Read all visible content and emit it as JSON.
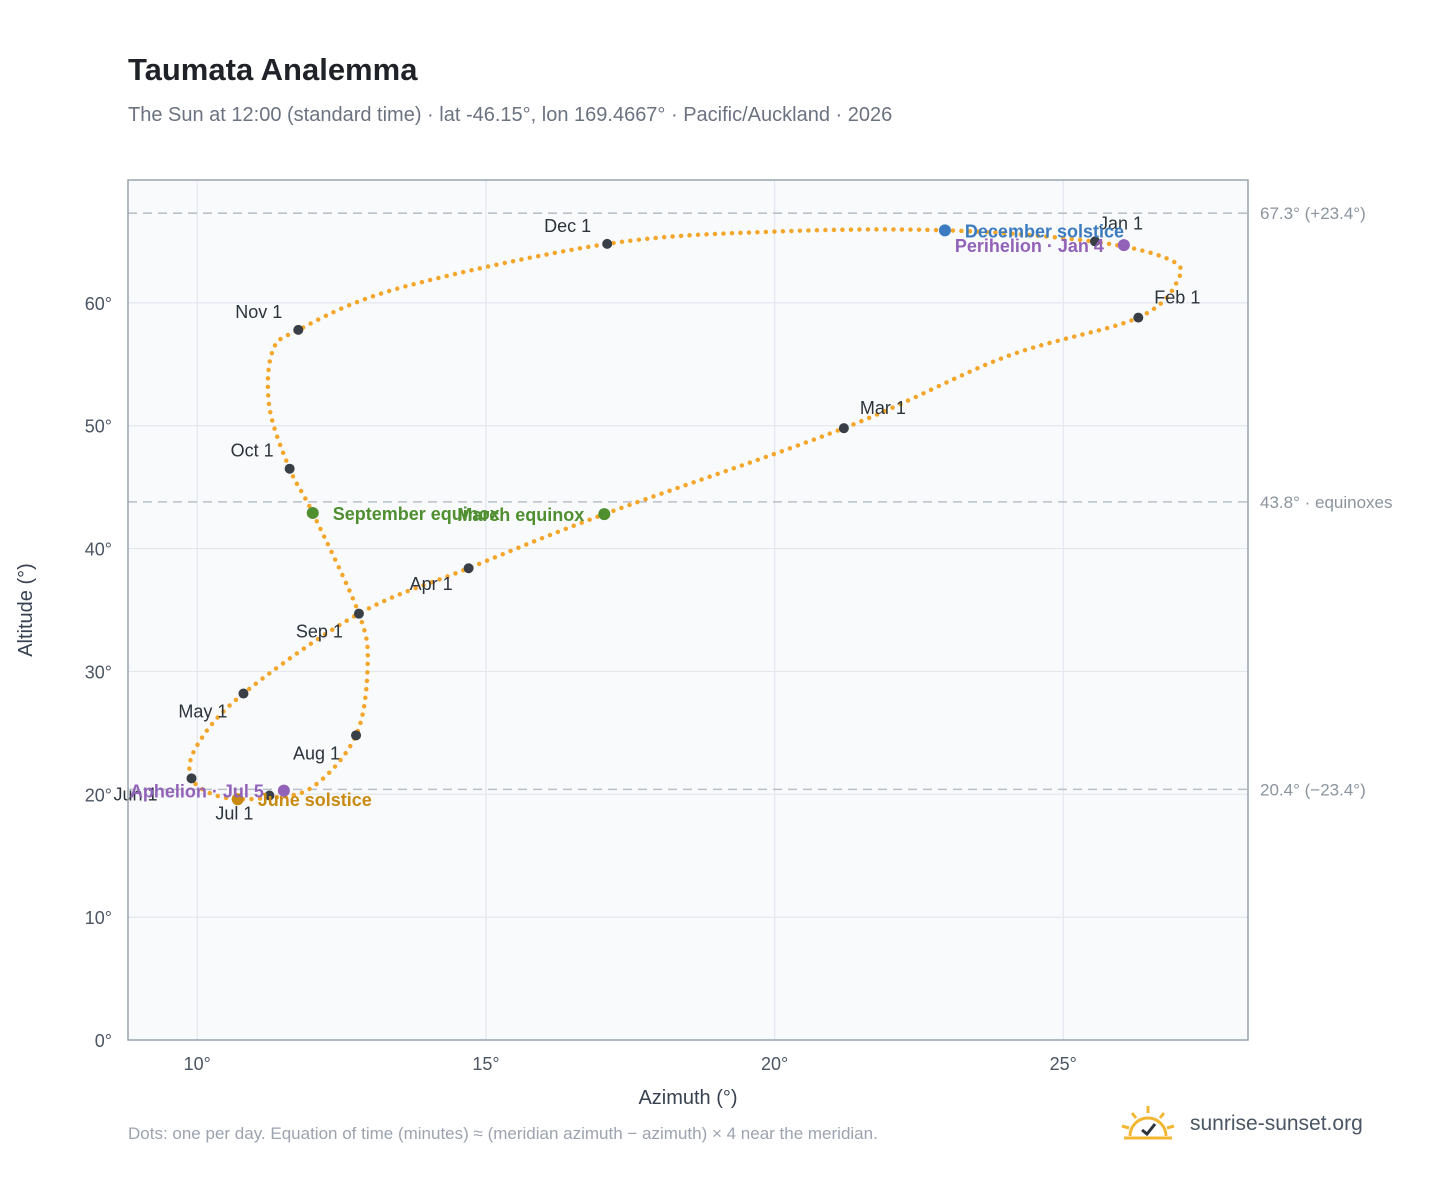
{
  "header": {
    "title": "Taumata Analemma",
    "subtitle": "The Sun at 12:00 (standard time) · lat -46.15°, lon 169.4667° · Pacific/Auckland · 2026"
  },
  "footer": {
    "note": "Dots: one per day. Equation of time (minutes) ≈ (meridian azimuth − azimuth) × 4 near the meridian.",
    "brand": "sunrise-sunset.org",
    "logo_icon": "sun-check-icon"
  },
  "chart_data": {
    "type": "scatter",
    "xlabel": "Azimuth (°)",
    "ylabel": "Altitude (°)",
    "xlim": [
      8.8,
      28.2
    ],
    "ylim": [
      0,
      70
    ],
    "x_ticks": [
      {
        "value": 10,
        "label": "10°"
      },
      {
        "value": 15,
        "label": "15°"
      },
      {
        "value": 20,
        "label": "20°"
      },
      {
        "value": 25,
        "label": "25°"
      }
    ],
    "y_ticks": [
      {
        "value": 0,
        "label": "0°"
      },
      {
        "value": 10,
        "label": "10°"
      },
      {
        "value": 20,
        "label": "20°"
      },
      {
        "value": 30,
        "label": "30°"
      },
      {
        "value": 40,
        "label": "40°"
      },
      {
        "value": 50,
        "label": "50°"
      },
      {
        "value": 60,
        "label": "60°"
      }
    ],
    "grid": true,
    "colors": {
      "curve": "#f4a62a",
      "month": "#3a3f47",
      "equinox": "#4f8f2f",
      "december_solstice": "#3b7bbf",
      "june_solstice": "#c98a12",
      "apsis": "#9162b8",
      "reference": "#b8c0c8",
      "plot_background": "#f8fafc"
    },
    "reference_lines": [
      {
        "y": 67.3,
        "label": "67.3° (+23.4°)"
      },
      {
        "y": 43.8,
        "label": "43.8° · equinoxes"
      },
      {
        "y": 20.4,
        "label": "20.4° (−23.4°)"
      }
    ],
    "curve_points": [
      [
        25.5,
        65.0
      ],
      [
        26.8,
        63.6
      ],
      [
        27.0,
        62.0
      ],
      [
        26.3,
        58.8
      ],
      [
        24.0,
        55.6
      ],
      [
        21.2,
        49.8
      ],
      [
        17.05,
        42.8
      ],
      [
        14.7,
        38.4
      ],
      [
        12.8,
        34.7
      ],
      [
        10.8,
        28.2
      ],
      [
        10.0,
        24.0
      ],
      [
        9.9,
        21.3
      ],
      [
        10.4,
        19.8
      ],
      [
        11.2,
        19.7
      ],
      [
        12.0,
        20.6
      ],
      [
        12.75,
        24.8
      ],
      [
        12.95,
        30.5
      ],
      [
        12.8,
        34.7
      ],
      [
        12.0,
        42.9
      ],
      [
        11.6,
        46.5
      ],
      [
        11.25,
        51.5
      ],
      [
        11.3,
        56.0
      ],
      [
        11.75,
        57.8
      ],
      [
        13.5,
        61.2
      ],
      [
        17.1,
        64.8
      ],
      [
        20.0,
        65.8
      ],
      [
        23.0,
        65.9
      ],
      [
        25.5,
        65.0
      ]
    ],
    "month_markers": [
      {
        "label": "Jan 1",
        "x": 25.55,
        "y": 65.0,
        "anchor": "start",
        "dx": 4,
        "dy": -12
      },
      {
        "label": "Feb 1",
        "x": 26.3,
        "y": 58.8,
        "anchor": "start",
        "dx": 16,
        "dy": -14
      },
      {
        "label": "Mar 1",
        "x": 21.2,
        "y": 49.8,
        "anchor": "start",
        "dx": 16,
        "dy": -14
      },
      {
        "label": "Apr 1",
        "x": 14.7,
        "y": 38.4,
        "anchor": "end",
        "dx": -16,
        "dy": 22
      },
      {
        "label": "May 1",
        "x": 10.8,
        "y": 28.2,
        "anchor": "end",
        "dx": -16,
        "dy": 24
      },
      {
        "label": "Jun 1",
        "x": 9.9,
        "y": 21.3,
        "anchor": "end",
        "dx": -34,
        "dy": 22
      },
      {
        "label": "Jul 1",
        "x": 11.25,
        "y": 19.9,
        "anchor": "end",
        "dx": -16,
        "dy": 24
      },
      {
        "label": "Aug 1",
        "x": 12.75,
        "y": 24.8,
        "anchor": "end",
        "dx": -16,
        "dy": 24
      },
      {
        "label": "Sep 1",
        "x": 12.8,
        "y": 34.7,
        "anchor": "end",
        "dx": -16,
        "dy": 24
      },
      {
        "label": "Oct 1",
        "x": 11.6,
        "y": 46.5,
        "anchor": "end",
        "dx": -16,
        "dy": -12
      },
      {
        "label": "Nov 1",
        "x": 11.75,
        "y": 57.8,
        "anchor": "end",
        "dx": -16,
        "dy": -12
      },
      {
        "label": "Dec 1",
        "x": 17.1,
        "y": 64.8,
        "anchor": "end",
        "dx": -16,
        "dy": -12
      }
    ],
    "events": [
      {
        "label": "December solstice",
        "x": 22.95,
        "y": 65.9,
        "color": "#3b7bbf",
        "anchor": "start",
        "dx": 20,
        "dy": 7
      },
      {
        "label": "Perihelion · Jan 4",
        "x": 26.05,
        "y": 64.7,
        "color": "#9162b8",
        "anchor": "end",
        "dx": -20,
        "dy": 7
      },
      {
        "label": "March equinox",
        "x": 17.05,
        "y": 42.8,
        "color": "#4f8f2f",
        "anchor": "end",
        "dx": -20,
        "dy": 7
      },
      {
        "label": "September equinox",
        "x": 12.0,
        "y": 42.9,
        "color": "#4f8f2f",
        "anchor": "start",
        "dx": 20,
        "dy": 7
      },
      {
        "label": "June solstice",
        "x": 10.7,
        "y": 19.6,
        "color": "#c98a12",
        "anchor": "start",
        "dx": 20,
        "dy": 7
      },
      {
        "label": "Aphelion · Jul 5",
        "x": 11.5,
        "y": 20.3,
        "color": "#9162b8",
        "anchor": "end",
        "dx": -20,
        "dy": 7
      }
    ]
  }
}
